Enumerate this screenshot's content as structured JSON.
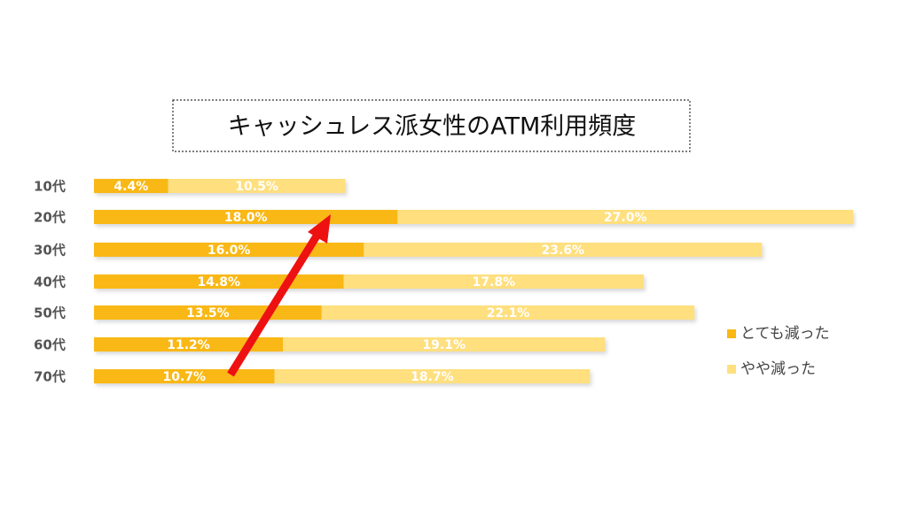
{
  "chart_data": {
    "type": "bar",
    "stacked": true,
    "title": "キャッシュレス派女性のATM利用頻度",
    "categories": [
      "10代",
      "20代",
      "30代",
      "40代",
      "50代",
      "60代",
      "70代"
    ],
    "series": [
      {
        "name": "とても減った",
        "color": "#f9b815",
        "values": [
          4.4,
          18.0,
          16.0,
          14.8,
          13.5,
          11.2,
          10.7
        ],
        "value_labels": [
          "4.4%",
          "18.0%",
          "16.0%",
          "14.8%",
          "13.5%",
          "11.2%",
          "10.7%"
        ]
      },
      {
        "name": "やや減った",
        "color": "#ffdf7e",
        "values": [
          10.5,
          27.0,
          23.6,
          17.8,
          22.1,
          19.1,
          18.7
        ],
        "value_labels": [
          "10.5%",
          "27.0%",
          "23.6%",
          "17.8%",
          "22.1%",
          "19.1%",
          "18.7%"
        ]
      }
    ]
  }
}
